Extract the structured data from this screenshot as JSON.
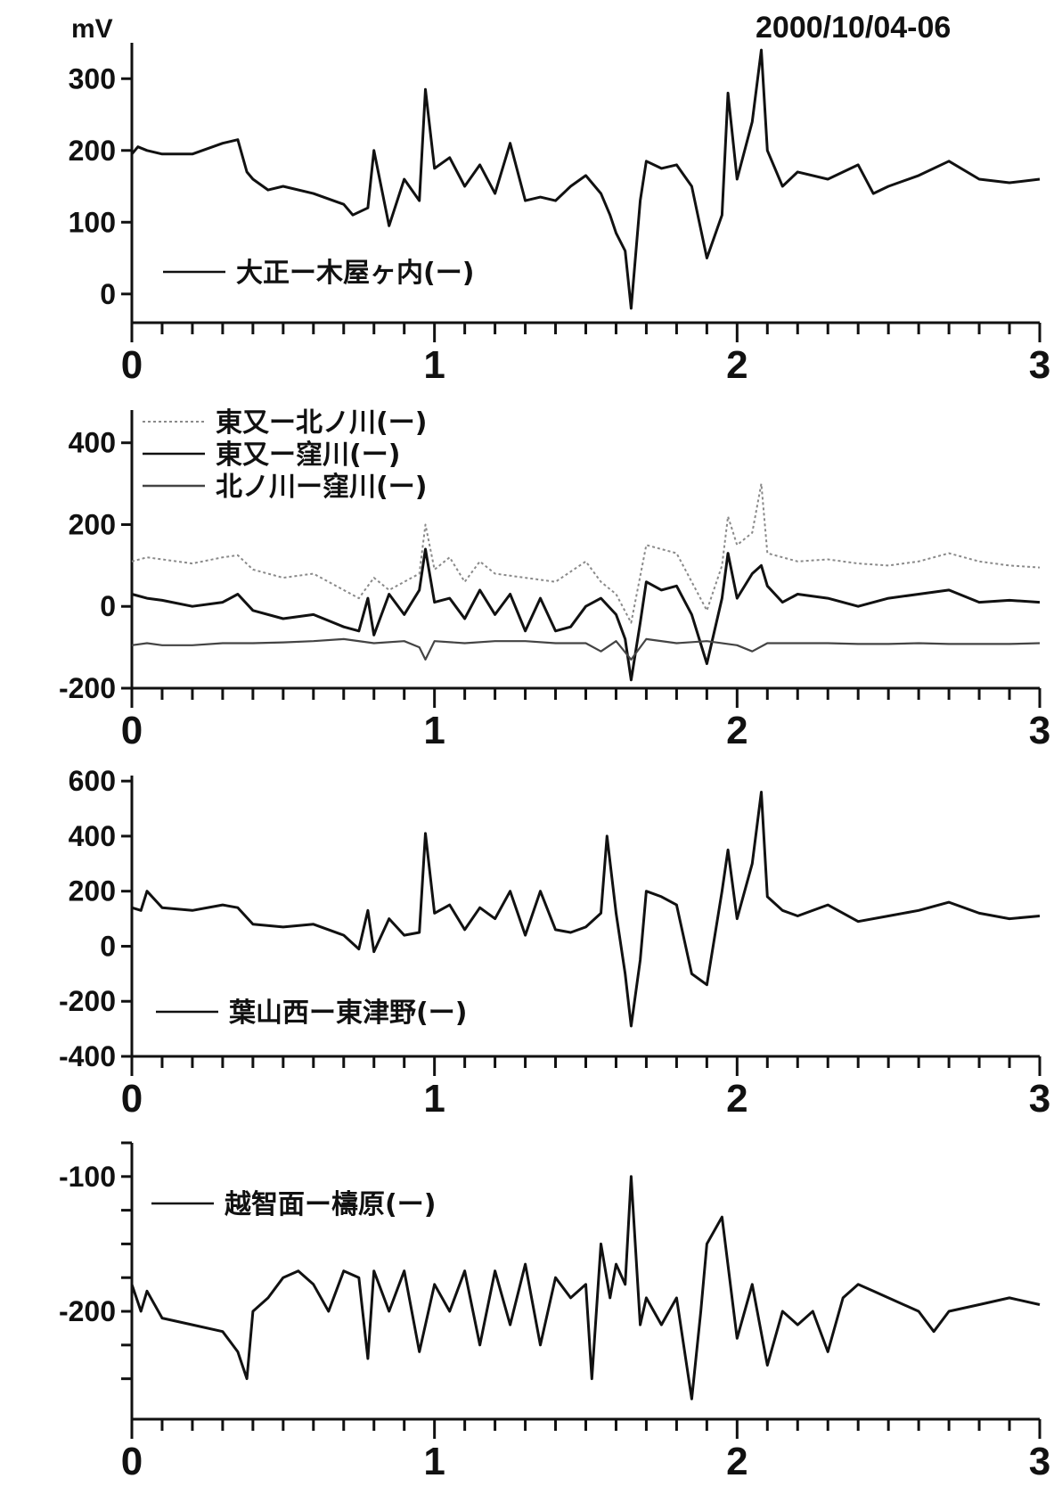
{
  "header": {
    "unit_label": "mV",
    "date_label": "2000/10/04-06"
  },
  "chart_data": [
    {
      "type": "line",
      "xlim": [
        0,
        3
      ],
      "ylim": [
        -40,
        350
      ],
      "y_ticks": [
        0,
        100,
        200,
        300
      ],
      "x_ticks": [
        0,
        1,
        2,
        3
      ],
      "x_tick_labels": [
        "0",
        "1",
        "2",
        "3"
      ],
      "legend_placement": "bottom-left",
      "series": [
        {
          "name": "大正ー木屋ヶ内(ー)",
          "color": "#111111",
          "style": "solid",
          "x": [
            0,
            0.02,
            0.05,
            0.1,
            0.2,
            0.3,
            0.35,
            0.38,
            0.4,
            0.45,
            0.5,
            0.6,
            0.7,
            0.73,
            0.78,
            0.8,
            0.85,
            0.9,
            0.95,
            0.97,
            1.0,
            1.05,
            1.1,
            1.15,
            1.2,
            1.25,
            1.3,
            1.35,
            1.4,
            1.45,
            1.5,
            1.55,
            1.58,
            1.6,
            1.63,
            1.65,
            1.68,
            1.7,
            1.75,
            1.8,
            1.85,
            1.9,
            1.95,
            1.97,
            2.0,
            2.05,
            2.08,
            2.1,
            2.15,
            2.2,
            2.3,
            2.4,
            2.45,
            2.5,
            2.6,
            2.7,
            2.8,
            2.9,
            3.0
          ],
          "y": [
            195,
            205,
            200,
            195,
            195,
            210,
            215,
            170,
            160,
            145,
            150,
            140,
            125,
            110,
            120,
            200,
            95,
            160,
            130,
            285,
            175,
            190,
            150,
            180,
            140,
            210,
            130,
            135,
            130,
            150,
            165,
            140,
            110,
            85,
            60,
            -20,
            130,
            185,
            175,
            180,
            150,
            50,
            110,
            280,
            160,
            240,
            340,
            200,
            150,
            170,
            160,
            180,
            140,
            150,
            165,
            185,
            160,
            155,
            160
          ]
        }
      ]
    },
    {
      "type": "line",
      "xlim": [
        0,
        3
      ],
      "ylim": [
        -200,
        480
      ],
      "y_ticks": [
        -200,
        0,
        200,
        400
      ],
      "x_ticks": [
        0,
        1,
        2,
        3
      ],
      "x_tick_labels": [
        "0",
        "1",
        "2",
        "3"
      ],
      "legend_placement": "top-left",
      "series": [
        {
          "name": "東又ー北ノ川(ー)",
          "color": "#8a8a8a",
          "style": "dotted",
          "x": [
            0,
            0.05,
            0.1,
            0.2,
            0.3,
            0.35,
            0.4,
            0.5,
            0.6,
            0.7,
            0.75,
            0.8,
            0.85,
            0.9,
            0.95,
            0.97,
            1.0,
            1.05,
            1.1,
            1.15,
            1.2,
            1.3,
            1.4,
            1.5,
            1.55,
            1.6,
            1.65,
            1.7,
            1.75,
            1.8,
            1.85,
            1.9,
            1.95,
            1.97,
            2.0,
            2.05,
            2.08,
            2.1,
            2.2,
            2.3,
            2.4,
            2.5,
            2.6,
            2.7,
            2.8,
            2.9,
            3.0
          ],
          "y": [
            110,
            120,
            115,
            105,
            120,
            125,
            90,
            70,
            80,
            40,
            20,
            70,
            40,
            60,
            80,
            200,
            90,
            120,
            60,
            110,
            80,
            70,
            60,
            110,
            60,
            30,
            -40,
            150,
            140,
            130,
            60,
            -10,
            100,
            220,
            150,
            180,
            300,
            130,
            110,
            115,
            105,
            100,
            110,
            130,
            110,
            100,
            95
          ]
        },
        {
          "name": "東又ー窪川(ー)",
          "color": "#111111",
          "style": "solid",
          "x": [
            0,
            0.05,
            0.1,
            0.2,
            0.3,
            0.35,
            0.4,
            0.5,
            0.6,
            0.7,
            0.75,
            0.78,
            0.8,
            0.85,
            0.9,
            0.95,
            0.97,
            1.0,
            1.05,
            1.1,
            1.15,
            1.2,
            1.25,
            1.3,
            1.35,
            1.4,
            1.45,
            1.5,
            1.55,
            1.6,
            1.63,
            1.65,
            1.68,
            1.7,
            1.75,
            1.8,
            1.85,
            1.9,
            1.95,
            1.97,
            2.0,
            2.05,
            2.08,
            2.1,
            2.15,
            2.2,
            2.3,
            2.4,
            2.5,
            2.6,
            2.7,
            2.8,
            2.9,
            3.0
          ],
          "y": [
            30,
            20,
            15,
            0,
            10,
            30,
            -10,
            -30,
            -20,
            -50,
            -60,
            20,
            -70,
            30,
            -20,
            40,
            140,
            10,
            20,
            -30,
            40,
            -20,
            30,
            -60,
            20,
            -60,
            -50,
            0,
            20,
            -20,
            -80,
            -180,
            -40,
            60,
            40,
            50,
            -20,
            -140,
            20,
            130,
            20,
            80,
            100,
            50,
            10,
            30,
            20,
            0,
            20,
            30,
            40,
            10,
            15,
            10
          ]
        },
        {
          "name": "北ノ川ー窪川(ー)",
          "color": "#444444",
          "style": "thin",
          "x": [
            0,
            0.05,
            0.1,
            0.2,
            0.3,
            0.4,
            0.5,
            0.6,
            0.7,
            0.8,
            0.9,
            0.95,
            0.97,
            1.0,
            1.1,
            1.2,
            1.3,
            1.4,
            1.5,
            1.55,
            1.6,
            1.65,
            1.7,
            1.8,
            1.9,
            2.0,
            2.05,
            2.1,
            2.2,
            2.3,
            2.4,
            2.5,
            2.6,
            2.7,
            2.8,
            2.9,
            3.0
          ],
          "y": [
            -95,
            -90,
            -95,
            -95,
            -90,
            -90,
            -88,
            -85,
            -80,
            -90,
            -85,
            -100,
            -130,
            -85,
            -90,
            -85,
            -85,
            -90,
            -90,
            -110,
            -85,
            -130,
            -80,
            -90,
            -85,
            -95,
            -110,
            -90,
            -90,
            -90,
            -92,
            -92,
            -90,
            -92,
            -92,
            -92,
            -90
          ]
        }
      ]
    },
    {
      "type": "line",
      "xlim": [
        0,
        3
      ],
      "ylim": [
        -400,
        620
      ],
      "y_ticks": [
        -400,
        -200,
        0,
        200,
        400,
        600
      ],
      "x_ticks": [
        0,
        1,
        2,
        3
      ],
      "x_tick_labels": [
        "0",
        "1",
        "2",
        "3"
      ],
      "legend_placement": "bottom-left",
      "series": [
        {
          "name": "葉山西ー東津野(ー)",
          "color": "#111111",
          "style": "solid",
          "x": [
            0,
            0.03,
            0.05,
            0.1,
            0.2,
            0.3,
            0.35,
            0.4,
            0.5,
            0.6,
            0.7,
            0.75,
            0.78,
            0.8,
            0.85,
            0.9,
            0.95,
            0.97,
            1.0,
            1.05,
            1.1,
            1.15,
            1.2,
            1.25,
            1.3,
            1.35,
            1.4,
            1.45,
            1.5,
            1.55,
            1.57,
            1.6,
            1.63,
            1.65,
            1.68,
            1.7,
            1.75,
            1.8,
            1.85,
            1.9,
            1.95,
            1.97,
            2.0,
            2.05,
            2.08,
            2.1,
            2.15,
            2.2,
            2.3,
            2.4,
            2.5,
            2.6,
            2.7,
            2.8,
            2.9,
            3.0
          ],
          "y": [
            140,
            130,
            200,
            140,
            130,
            150,
            140,
            80,
            70,
            80,
            40,
            -10,
            130,
            -20,
            100,
            40,
            50,
            410,
            120,
            150,
            60,
            140,
            100,
            200,
            40,
            200,
            60,
            50,
            70,
            120,
            400,
            120,
            -100,
            -290,
            -50,
            200,
            180,
            150,
            -100,
            -140,
            200,
            350,
            100,
            300,
            560,
            180,
            130,
            110,
            150,
            90,
            110,
            130,
            160,
            120,
            100,
            110
          ]
        }
      ]
    },
    {
      "type": "line",
      "xlim": [
        0,
        3
      ],
      "ylim": [
        -280,
        -75
      ],
      "y_ticks": [
        -250,
        -225,
        -200,
        -175,
        -150,
        -125,
        -100,
        -75
      ],
      "y_tick_labels": [
        "",
        "",
        "-200",
        "",
        "",
        "",
        "-100",
        ""
      ],
      "x_ticks": [
        0,
        1,
        2,
        3
      ],
      "x_tick_labels": [
        "0",
        "1",
        "2",
        "3"
      ],
      "legend_placement": "top-left",
      "series": [
        {
          "name": "越智面ー檮原(ー)",
          "color": "#111111",
          "style": "solid",
          "x": [
            0,
            0.03,
            0.05,
            0.1,
            0.2,
            0.3,
            0.35,
            0.38,
            0.4,
            0.45,
            0.5,
            0.55,
            0.6,
            0.65,
            0.7,
            0.75,
            0.78,
            0.8,
            0.85,
            0.9,
            0.95,
            1.0,
            1.05,
            1.1,
            1.15,
            1.2,
            1.25,
            1.3,
            1.35,
            1.4,
            1.45,
            1.5,
            1.52,
            1.55,
            1.58,
            1.6,
            1.63,
            1.65,
            1.68,
            1.7,
            1.75,
            1.8,
            1.85,
            1.88,
            1.9,
            1.95,
            2.0,
            2.05,
            2.1,
            2.15,
            2.2,
            2.25,
            2.3,
            2.35,
            2.4,
            2.45,
            2.5,
            2.6,
            2.65,
            2.7,
            2.8,
            2.9,
            3.0
          ],
          "y": [
            -180,
            -200,
            -185,
            -205,
            -210,
            -215,
            -230,
            -250,
            -200,
            -190,
            -175,
            -170,
            -180,
            -200,
            -170,
            -175,
            -235,
            -170,
            -200,
            -170,
            -230,
            -180,
            -200,
            -170,
            -225,
            -170,
            -210,
            -165,
            -225,
            -175,
            -190,
            -180,
            -250,
            -150,
            -190,
            -165,
            -180,
            -100,
            -210,
            -190,
            -210,
            -190,
            -265,
            -200,
            -150,
            -130,
            -220,
            -180,
            -240,
            -200,
            -210,
            -200,
            -230,
            -190,
            -180,
            -185,
            -190,
            -200,
            -215,
            -200,
            -195,
            -190,
            -195
          ]
        }
      ]
    }
  ]
}
